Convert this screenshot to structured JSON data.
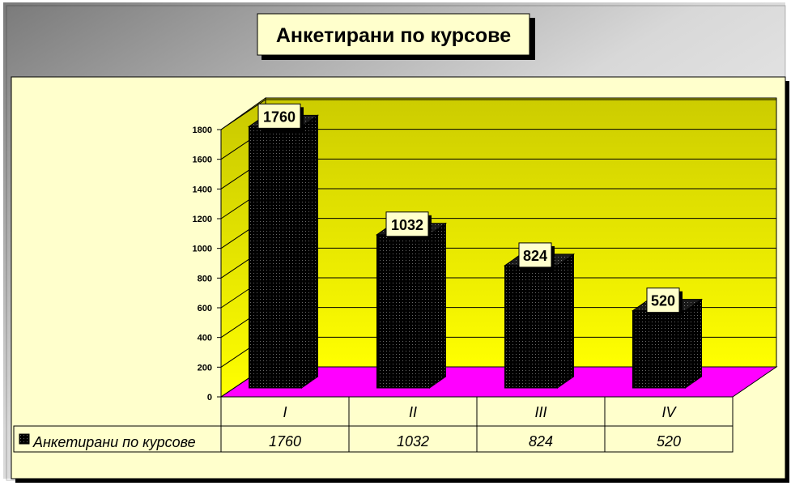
{
  "chart_data": {
    "type": "bar",
    "title": "Анкетирани по курсове",
    "categories": [
      "I",
      "II",
      "III",
      "IV"
    ],
    "series": [
      {
        "name": "Анкетирани по курсове",
        "values": [
          1760,
          1032,
          824,
          520
        ]
      }
    ],
    "data_labels": [
      "1760",
      "1032",
      "824",
      "520"
    ],
    "yticks": [
      "0",
      "200",
      "400",
      "600",
      "800",
      "1000",
      "1200",
      "1400",
      "1600",
      "1800"
    ],
    "ylim": [
      0,
      1800
    ],
    "xlabel": "",
    "ylabel": "",
    "grid": true,
    "data_table": true,
    "legend_position": "data-table",
    "colors": {
      "frame_gradient_dark": "#7a7a7a",
      "frame_gradient_light": "#ffffff",
      "plot_area": "#ffffcc",
      "back_wall_top": "#cccc00",
      "back_wall_bottom": "#ffff00",
      "floor": "#ff00ff",
      "bar": "#000000",
      "label_box": "#ffffcc"
    }
  }
}
